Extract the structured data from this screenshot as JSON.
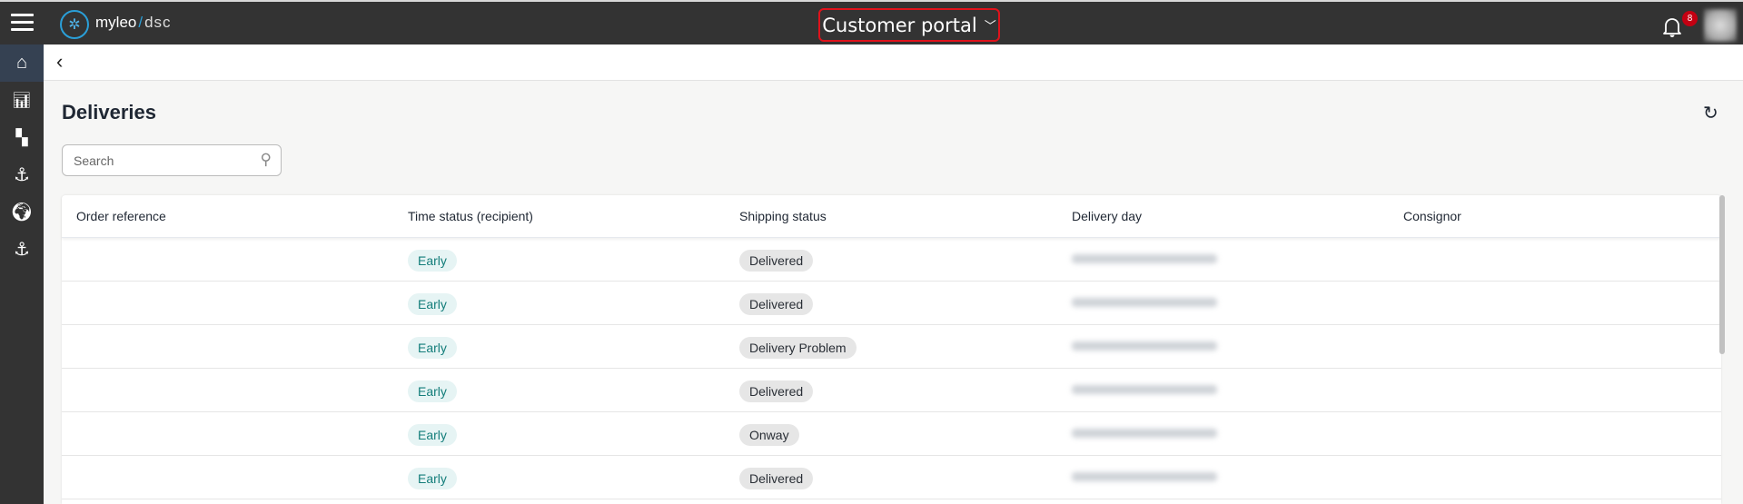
{
  "header": {
    "brand_name": "myleo",
    "brand_separator": "/",
    "brand_suffix": "dsc",
    "portal_label": "Customer portal",
    "notification_count": "8"
  },
  "sidebar": {
    "items": [
      {
        "icon": "home-icon",
        "active": true
      },
      {
        "icon": "chart-icon"
      },
      {
        "icon": "dashboard-icon"
      },
      {
        "icon": "anchor-icon"
      },
      {
        "icon": "globe-icon"
      },
      {
        "icon": "anchor-icon"
      }
    ]
  },
  "page": {
    "title": "Deliveries",
    "search_placeholder": "Search"
  },
  "table": {
    "columns": [
      "Order reference",
      "Time status (recipient)",
      "Shipping status",
      "Delivery day",
      "Consignor"
    ],
    "rows": [
      {
        "time_status": "Early",
        "shipping_status": "Delivered"
      },
      {
        "time_status": "Early",
        "shipping_status": "Delivered"
      },
      {
        "time_status": "Early",
        "shipping_status": "Delivery Problem"
      },
      {
        "time_status": "Early",
        "shipping_status": "Delivered"
      },
      {
        "time_status": "Early",
        "shipping_status": "Onway"
      },
      {
        "time_status": "Early",
        "shipping_status": "Delivered"
      }
    ]
  },
  "colors": {
    "topbar": "#333333",
    "active_nav": "#354152",
    "portal_border": "#e0121b",
    "early_text": "#137d7a",
    "badge": "#c40012"
  }
}
